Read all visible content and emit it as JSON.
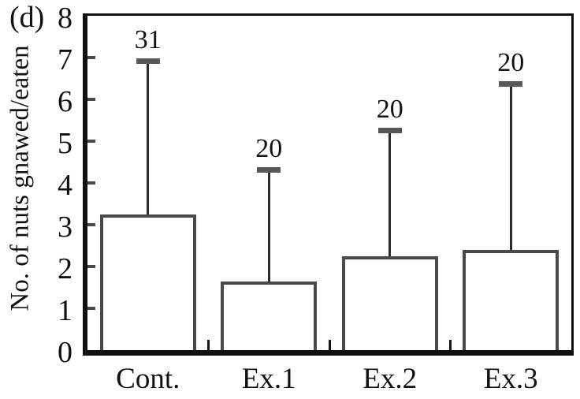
{
  "panel_label": "(d)",
  "chart_data": {
    "type": "bar",
    "title": "",
    "xlabel": "",
    "ylabel": "No. of nuts gnawed/eaten",
    "categories": [
      "Cont.",
      "Ex.1",
      "Ex.2",
      "Ex.3"
    ],
    "values": [
      3.25,
      1.65,
      2.25,
      2.4
    ],
    "error_upper": [
      3.65,
      2.65,
      3.0,
      3.95
    ],
    "error_bar_tops": [
      6.9,
      4.3,
      5.25,
      6.35
    ],
    "bar_labels": [
      "31",
      "20",
      "20",
      "20"
    ],
    "ylim": [
      0,
      8
    ],
    "yticks": [
      0,
      1,
      2,
      3,
      4,
      5,
      6,
      7,
      8
    ],
    "grid": false,
    "legend": false,
    "bar_fill": "#ffffff",
    "bar_border_color": "#4a4a4a",
    "error_line_color": "#2b2b2b",
    "error_cap_color": "#585858",
    "axis_color": "#111111",
    "text_color": "#111111",
    "background_color": "#ffffff"
  }
}
